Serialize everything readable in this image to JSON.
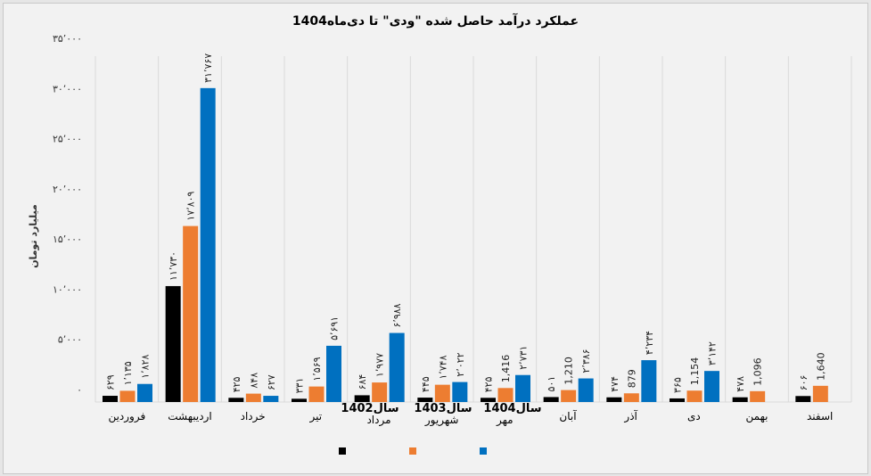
{
  "chart_data": {
    "type": "bar",
    "title": "عملکرد درآمد حاصل شده \"ودی\" تا دی‌ماه1404",
    "ylabel": "میلیارد تومان",
    "xlabel": "",
    "ylim": [
      0,
      35000
    ],
    "grid": "vertical category separators",
    "legend_position": "bottom",
    "yticks": [
      0,
      5000,
      10000,
      15000,
      20000,
      25000,
      30000,
      35000
    ],
    "ytick_labels": [
      "۰",
      "۵٬۰۰۰",
      "۱۰٬۰۰۰",
      "۱۵٬۰۰۰",
      "۲۰٬۰۰۰",
      "۲۵٬۰۰۰",
      "۳۰٬۰۰۰",
      "۳۵٬۰۰۰"
    ],
    "categories": [
      "فروردین",
      "اردیبهشت",
      "خرداد",
      "تیر",
      "مرداد",
      "شهریور",
      "مهر",
      "آبان",
      "آذر",
      "دی",
      "بهمن",
      "اسفند"
    ],
    "series": [
      {
        "name": "سال1402",
        "color": "#000000",
        "values": [
          629,
          11730,
          425,
          331,
          684,
          445,
          425,
          501,
          474,
          365,
          478,
          606
        ],
        "labels": [
          "۶۲۹",
          "۱۱٬۷۳۰",
          "۴۲۵",
          "۳۳۱",
          "۶۸۴",
          "۴۴۵",
          "۴۲۵",
          "۵۰۱",
          "۴۷۴",
          "۳۶۵",
          "۴۷۸",
          "۶۰۶"
        ]
      },
      {
        "name": "سال1403",
        "color": "#ed7d31",
        "values": [
          1135,
          17809,
          848,
          1569,
          1977,
          1748,
          1416,
          1210,
          879,
          1154,
          1096,
          1640
        ],
        "labels": [
          "۱٬۱۳۵",
          "۱۷٬۸۰۹",
          "۸۴۸",
          "۱٬۵۶۹",
          "۱٬۹۷۷",
          "۱٬۷۴۸",
          "1,416",
          "1,210",
          "879",
          "1,154",
          "1,096",
          "1,640"
        ]
      },
      {
        "name": "سال1404",
        "color": "#0070c0",
        "values": [
          1828,
          31767,
          627,
          5691,
          6988,
          2022,
          2731,
          2386,
          4234,
          3142,
          null,
          null
        ],
        "labels": [
          "۱٬۸۲۸",
          "۳۱٬۷۶۷",
          "۶۲۷",
          "۵٬۶۹۱",
          "۶٬۹۸۸",
          "۲٬۰۲۲",
          "۲٬۷۳۱",
          "۲٬۳۸۶",
          "۴٬۲۳۴",
          "۳٬۱۴۲",
          null,
          null
        ]
      }
    ]
  }
}
